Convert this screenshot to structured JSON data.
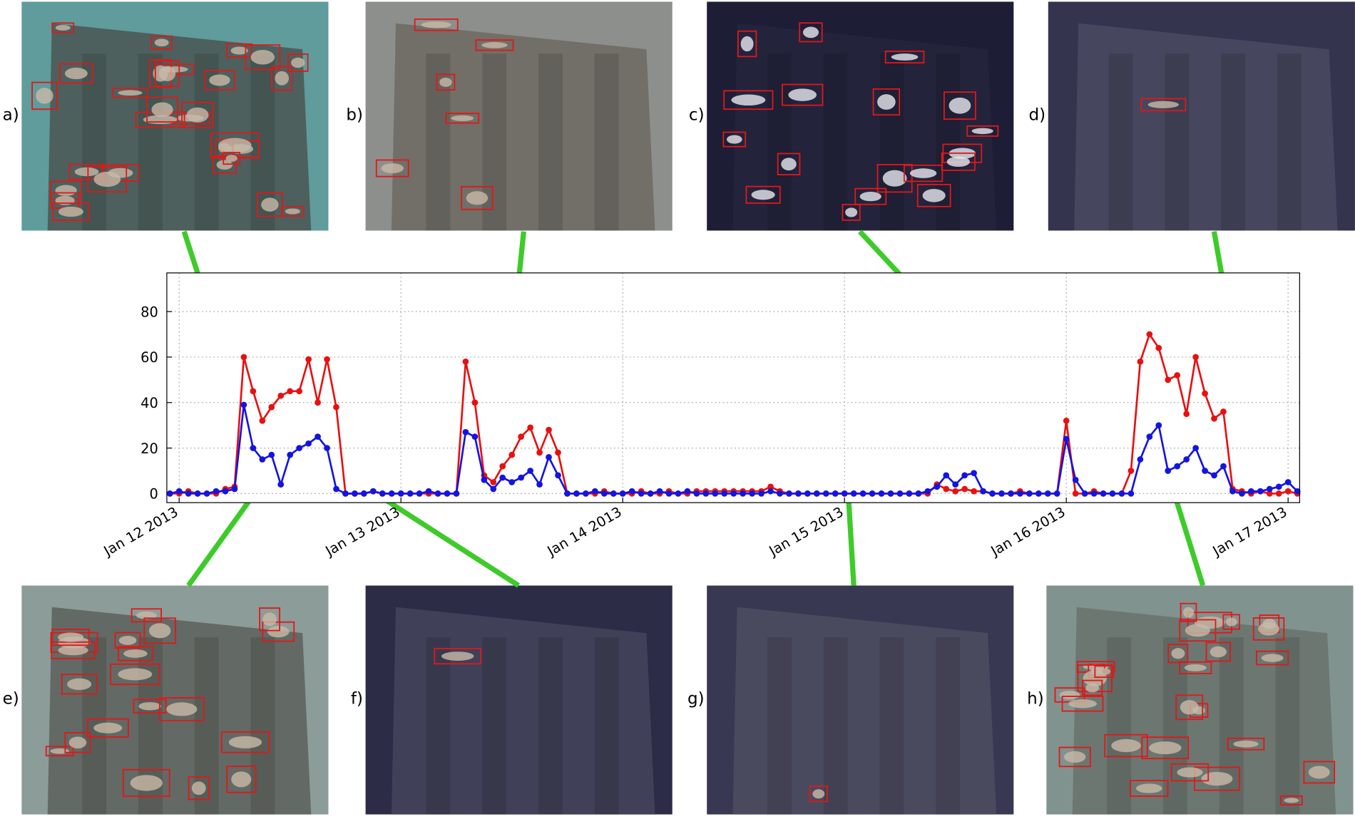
{
  "chart_data": {
    "type": "line",
    "x": [
      "2013-01-11T23:00",
      "2013-01-12T00:00",
      "2013-01-12T01:00",
      "2013-01-12T02:00",
      "2013-01-12T03:00",
      "2013-01-12T04:00",
      "2013-01-12T05:00",
      "2013-01-12T06:00",
      "2013-01-12T07:00",
      "2013-01-12T08:00",
      "2013-01-12T09:00",
      "2013-01-12T10:00",
      "2013-01-12T11:00",
      "2013-01-12T12:00",
      "2013-01-12T13:00",
      "2013-01-12T14:00",
      "2013-01-12T15:00",
      "2013-01-12T16:00",
      "2013-01-12T17:00",
      "2013-01-12T18:00",
      "2013-01-12T19:00",
      "2013-01-12T20:00",
      "2013-01-12T21:00",
      "2013-01-12T22:00",
      "2013-01-12T23:00",
      "2013-01-13T00:00",
      "2013-01-13T01:00",
      "2013-01-13T02:00",
      "2013-01-13T03:00",
      "2013-01-13T04:00",
      "2013-01-13T05:00",
      "2013-01-13T06:00",
      "2013-01-13T07:00",
      "2013-01-13T08:00",
      "2013-01-13T09:00",
      "2013-01-13T10:00",
      "2013-01-13T11:00",
      "2013-01-13T12:00",
      "2013-01-13T13:00",
      "2013-01-13T14:00",
      "2013-01-13T15:00",
      "2013-01-13T16:00",
      "2013-01-13T17:00",
      "2013-01-13T18:00",
      "2013-01-13T19:00",
      "2013-01-13T20:00",
      "2013-01-13T21:00",
      "2013-01-13T22:00",
      "2013-01-13T23:00",
      "2013-01-14T00:00",
      "2013-01-14T01:00",
      "2013-01-14T02:00",
      "2013-01-14T03:00",
      "2013-01-14T04:00",
      "2013-01-14T05:00",
      "2013-01-14T06:00",
      "2013-01-14T07:00",
      "2013-01-14T08:00",
      "2013-01-14T09:00",
      "2013-01-14T10:00",
      "2013-01-14T11:00",
      "2013-01-14T12:00",
      "2013-01-14T13:00",
      "2013-01-14T14:00",
      "2013-01-14T15:00",
      "2013-01-14T16:00",
      "2013-01-14T17:00",
      "2013-01-14T18:00",
      "2013-01-14T19:00",
      "2013-01-14T20:00",
      "2013-01-14T21:00",
      "2013-01-14T22:00",
      "2013-01-14T23:00",
      "2013-01-15T00:00",
      "2013-01-15T01:00",
      "2013-01-15T02:00",
      "2013-01-15T03:00",
      "2013-01-15T04:00",
      "2013-01-15T05:00",
      "2013-01-15T06:00",
      "2013-01-15T07:00",
      "2013-01-15T08:00",
      "2013-01-15T09:00",
      "2013-01-15T10:00",
      "2013-01-15T11:00",
      "2013-01-15T12:00",
      "2013-01-15T13:00",
      "2013-01-15T14:00",
      "2013-01-15T15:00",
      "2013-01-15T16:00",
      "2013-01-15T17:00",
      "2013-01-15T18:00",
      "2013-01-15T19:00",
      "2013-01-15T20:00",
      "2013-01-15T21:00",
      "2013-01-15T22:00",
      "2013-01-15T23:00",
      "2013-01-16T00:00",
      "2013-01-16T01:00",
      "2013-01-16T02:00",
      "2013-01-16T03:00",
      "2013-01-16T04:00",
      "2013-01-16T05:00",
      "2013-01-16T06:00",
      "2013-01-16T07:00",
      "2013-01-16T08:00",
      "2013-01-16T09:00",
      "2013-01-16T10:00",
      "2013-01-16T11:00",
      "2013-01-16T12:00",
      "2013-01-16T13:00",
      "2013-01-16T14:00",
      "2013-01-16T15:00",
      "2013-01-16T16:00",
      "2013-01-16T17:00",
      "2013-01-16T18:00",
      "2013-01-16T19:00",
      "2013-01-16T20:00",
      "2013-01-16T21:00",
      "2013-01-16T22:00",
      "2013-01-16T23:00",
      "2013-01-17T00:00",
      "2013-01-17T01:00"
    ],
    "series": [
      {
        "color": "#e81010",
        "values": [
          0,
          0,
          1,
          0,
          0,
          0,
          2,
          3,
          60,
          45,
          32,
          38,
          43,
          45,
          45,
          59,
          40,
          59,
          38,
          0,
          0,
          0,
          1,
          0,
          0,
          0,
          0,
          0,
          0,
          0,
          0,
          0,
          58,
          40,
          8,
          5,
          12,
          17,
          25,
          29,
          18,
          28,
          18,
          0,
          0,
          0,
          0,
          1,
          0,
          0,
          0,
          1,
          0,
          0,
          1,
          0,
          0,
          1,
          1,
          1,
          1,
          1,
          1,
          1,
          1,
          3,
          1,
          0,
          0,
          0,
          0,
          0,
          0,
          0,
          0,
          0,
          0,
          0,
          0,
          0,
          0,
          0,
          0,
          4,
          2,
          1,
          2,
          1,
          1,
          0,
          0,
          0,
          1,
          0,
          0,
          0,
          0,
          32,
          0,
          0,
          1,
          0,
          0,
          0,
          10,
          58,
          70,
          64,
          50,
          52,
          35,
          60,
          44,
          33,
          36,
          2,
          1,
          0,
          1,
          0,
          0,
          1,
          0
        ]
      },
      {
        "color": "#1414e0",
        "values": [
          0,
          1,
          0,
          0,
          0,
          1,
          1,
          2,
          39,
          20,
          15,
          17,
          4,
          17,
          20,
          22,
          25,
          20,
          2,
          0,
          0,
          0,
          1,
          0,
          0,
          0,
          0,
          0,
          1,
          0,
          0,
          0,
          27,
          25,
          6,
          2,
          7,
          5,
          7,
          10,
          4,
          16,
          8,
          0,
          0,
          0,
          1,
          0,
          0,
          0,
          1,
          0,
          0,
          1,
          0,
          0,
          1,
          0,
          0,
          0,
          0,
          0,
          0,
          0,
          0,
          1,
          0,
          0,
          0,
          0,
          0,
          0,
          0,
          0,
          0,
          0,
          0,
          0,
          0,
          0,
          0,
          0,
          1,
          3,
          8,
          4,
          8,
          9,
          1,
          0,
          0,
          0,
          0,
          0,
          0,
          0,
          0,
          24,
          6,
          0,
          0,
          0,
          0,
          0,
          0,
          15,
          25,
          30,
          10,
          12,
          15,
          20,
          10,
          8,
          12,
          1,
          0,
          1,
          1,
          2,
          3,
          5,
          1
        ]
      }
    ],
    "xlim": [
      "2013-01-11T22:40",
      "2013-01-17T01:15"
    ],
    "xticks": [
      {
        "value": "2013-01-12T00:00",
        "label": "Jan 12 2013"
      },
      {
        "value": "2013-01-13T00:00",
        "label": "Jan 13 2013"
      },
      {
        "value": "2013-01-14T00:00",
        "label": "Jan 14 2013"
      },
      {
        "value": "2013-01-15T00:00",
        "label": "Jan 15 2013"
      },
      {
        "value": "2013-01-16T00:00",
        "label": "Jan 16 2013"
      },
      {
        "value": "2013-01-17T00:00",
        "label": "Jan 17 2013"
      }
    ],
    "ylim": [
      -4,
      97
    ],
    "yticks": [
      0,
      20,
      40,
      60,
      80
    ],
    "grid": true
  },
  "panels": [
    {
      "label": "a)"
    },
    {
      "label": "b)"
    },
    {
      "label": "c)"
    },
    {
      "label": "d)"
    },
    {
      "label": "e)"
    },
    {
      "label": "f)"
    },
    {
      "label": "g)"
    },
    {
      "label": "h)"
    }
  ]
}
